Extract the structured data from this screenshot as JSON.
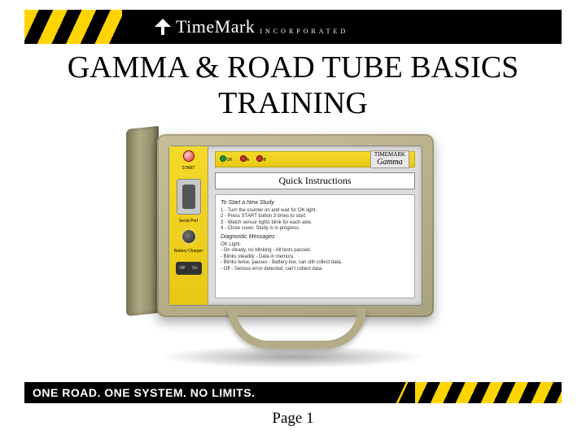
{
  "header": {
    "brand_name": "TimeMark",
    "brand_sub": "INCORPORATED"
  },
  "title_line1": "GAMMA & ROAD TUBE BASICS",
  "title_line2": "TRAINING",
  "device": {
    "brand_top": "TIMEMARK",
    "model": "Gamma",
    "start_label": "START",
    "led_labels": {
      "ok": "OK",
      "a": "A",
      "b": "B"
    },
    "serial_label": "Serial\nPort",
    "battery_label": "Battery\nCharger",
    "off_label": "Off",
    "on_label": "On",
    "qi_title": "Quick Instructions",
    "sec1_title": "To Start a New Study",
    "sec1_lines": [
      "1 - Turn the counter on and wait for OK light.",
      "2 - Press START button 3 times to start.",
      "3 - Watch sensor lights blink for each axle.",
      "4 - Close cover. Study is in progress."
    ],
    "sec2_title": "Diagnostic Messages",
    "sec2_header": "OK Light:",
    "sec2_lines": [
      "- On steady, no blinking - All tests passed.",
      "- Blinks steadily - Data in memory.",
      "- Blinks twice, pauses - Battery low, can still collect data.",
      "- Off - Serious error detected, can't collect data."
    ]
  },
  "footer_tagline": "ONE ROAD. ONE SYSTEM. NO LIMITS.",
  "page_label": "Page 1",
  "colors": {
    "hazard_yellow": "#ffd400",
    "black": "#000000",
    "device_tan": "#b0a983",
    "panel_yellow": "#eed94a"
  }
}
